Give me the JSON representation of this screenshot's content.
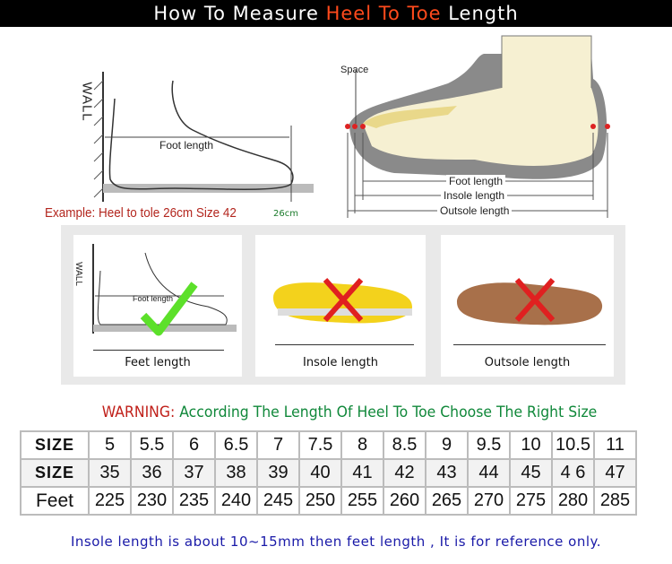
{
  "title": {
    "part1": "How To Measure ",
    "highlight": "Heel To Toe",
    "part2": " Length"
  },
  "illustration_left": {
    "wall_label": "WALL",
    "foot_length_label": "Foot length",
    "example": "Example: Heel to tole 26cm Size 42",
    "cm_label": "26cm"
  },
  "illustration_right": {
    "space_label": "Space",
    "foot_length": "Foot length",
    "insole_length": "Insole length",
    "outsole_length": "Outsole length"
  },
  "panels": [
    {
      "label": "Feet length",
      "mark": "check",
      "wall": "WALL",
      "foot": "Foot length"
    },
    {
      "label": "Insole length",
      "mark": "cross"
    },
    {
      "label": "Outsole length",
      "mark": "cross"
    }
  ],
  "warning": {
    "prefix": "WARNING:",
    "text": "According The Length Of Heel To Toe Choose The Right Size"
  },
  "size_table": {
    "rows": [
      {
        "header": "SIZE",
        "values": [
          "5",
          "5.5",
          "6",
          "6.5",
          "7",
          "7.5",
          "8",
          "8.5",
          "9",
          "9.5",
          "10",
          "10.5",
          "11"
        ]
      },
      {
        "header": "SIZE",
        "values": [
          "35",
          "36",
          "37",
          "38",
          "39",
          "40",
          "41",
          "42",
          "43",
          "44",
          "45",
          "4 6",
          "47"
        ]
      },
      {
        "header": "Feet",
        "values": [
          "225",
          "230",
          "235",
          "240",
          "245",
          "250",
          "255",
          "260",
          "265",
          "270",
          "275",
          "280",
          "285"
        ]
      }
    ]
  },
  "footer": "Insole length is about 10~15mm then feet length , It is for reference only.",
  "colors": {
    "title_highlight": "#ff4a1c",
    "warning": "#c0201a",
    "green_text": "#10883a",
    "footer": "#1a1aa8",
    "check": "#5ce02a",
    "cross": "#e02020"
  }
}
